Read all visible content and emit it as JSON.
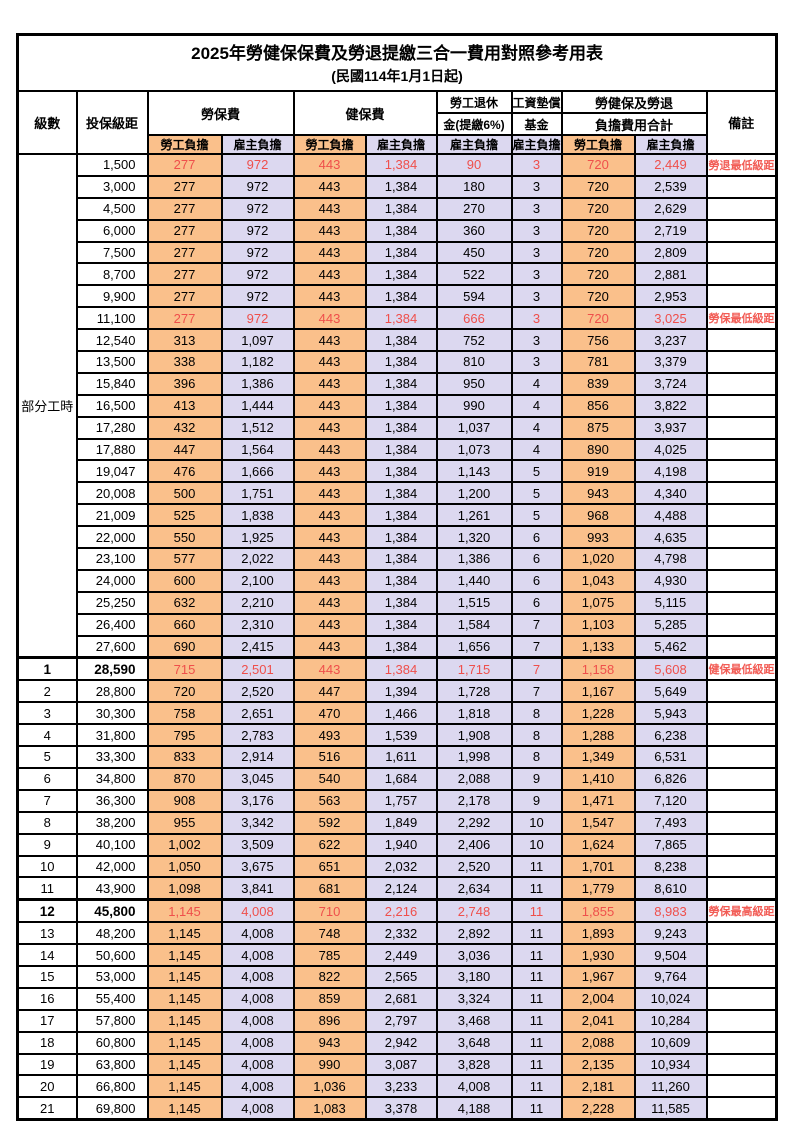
{
  "title": "2025年勞健保保費及勞退提繳三合一費用對照參考用表",
  "subtitle": "(民國114年1月1日起)",
  "colors": {
    "employee_bg": "#FAC08B",
    "employer_bg": "#DCD8F0",
    "highlight_text": "#EF4F4B",
    "remark_text": "#F25C55",
    "border": "#000000"
  },
  "header": {
    "level": "級數",
    "bracket": "投保級距",
    "labor_insurance": "勞保費",
    "health_insurance": "健保費",
    "pension_line1": "勞工退休",
    "pension_line2": "金(提繳6%)",
    "wage_fund_line1": "工資墊償",
    "wage_fund_line2": "基金",
    "total_line1": "勞健保及勞退",
    "total_line2": "負擔費用合計",
    "remark": "備註",
    "employee_share": "勞工負擔",
    "employer_share": "雇主負擔"
  },
  "table": {
    "part_time_label": "部分工時",
    "part_time_span": 23,
    "column_keys": [
      "level",
      "bracket",
      "labor_employee",
      "labor_employer",
      "health_employee",
      "health_employer",
      "pension_employer",
      "wage_fund_employer",
      "total_employee",
      "total_employer",
      "remark"
    ],
    "highlight_rows": [
      0,
      7,
      23,
      34
    ],
    "bold_head_rows": [
      23,
      34
    ],
    "thick_top_rows": [
      23,
      34
    ],
    "rows": [
      [
        "",
        "1,500",
        "277",
        "972",
        "443",
        "1,384",
        "90",
        "3",
        "720",
        "2,449",
        "勞退最低級距"
      ],
      [
        "",
        "3,000",
        "277",
        "972",
        "443",
        "1,384",
        "180",
        "3",
        "720",
        "2,539",
        ""
      ],
      [
        "",
        "4,500",
        "277",
        "972",
        "443",
        "1,384",
        "270",
        "3",
        "720",
        "2,629",
        ""
      ],
      [
        "",
        "6,000",
        "277",
        "972",
        "443",
        "1,384",
        "360",
        "3",
        "720",
        "2,719",
        ""
      ],
      [
        "",
        "7,500",
        "277",
        "972",
        "443",
        "1,384",
        "450",
        "3",
        "720",
        "2,809",
        ""
      ],
      [
        "",
        "8,700",
        "277",
        "972",
        "443",
        "1,384",
        "522",
        "3",
        "720",
        "2,881",
        ""
      ],
      [
        "",
        "9,900",
        "277",
        "972",
        "443",
        "1,384",
        "594",
        "3",
        "720",
        "2,953",
        ""
      ],
      [
        "",
        "11,100",
        "277",
        "972",
        "443",
        "1,384",
        "666",
        "3",
        "720",
        "3,025",
        "勞保最低級距"
      ],
      [
        "",
        "12,540",
        "313",
        "1,097",
        "443",
        "1,384",
        "752",
        "3",
        "756",
        "3,237",
        ""
      ],
      [
        "",
        "13,500",
        "338",
        "1,182",
        "443",
        "1,384",
        "810",
        "3",
        "781",
        "3,379",
        ""
      ],
      [
        "",
        "15,840",
        "396",
        "1,386",
        "443",
        "1,384",
        "950",
        "4",
        "839",
        "3,724",
        ""
      ],
      [
        "",
        "16,500",
        "413",
        "1,444",
        "443",
        "1,384",
        "990",
        "4",
        "856",
        "3,822",
        ""
      ],
      [
        "",
        "17,280",
        "432",
        "1,512",
        "443",
        "1,384",
        "1,037",
        "4",
        "875",
        "3,937",
        ""
      ],
      [
        "",
        "17,880",
        "447",
        "1,564",
        "443",
        "1,384",
        "1,073",
        "4",
        "890",
        "4,025",
        ""
      ],
      [
        "",
        "19,047",
        "476",
        "1,666",
        "443",
        "1,384",
        "1,143",
        "5",
        "919",
        "4,198",
        ""
      ],
      [
        "",
        "20,008",
        "500",
        "1,751",
        "443",
        "1,384",
        "1,200",
        "5",
        "943",
        "4,340",
        ""
      ],
      [
        "",
        "21,009",
        "525",
        "1,838",
        "443",
        "1,384",
        "1,261",
        "5",
        "968",
        "4,488",
        ""
      ],
      [
        "",
        "22,000",
        "550",
        "1,925",
        "443",
        "1,384",
        "1,320",
        "6",
        "993",
        "4,635",
        ""
      ],
      [
        "",
        "23,100",
        "577",
        "2,022",
        "443",
        "1,384",
        "1,386",
        "6",
        "1,020",
        "4,798",
        ""
      ],
      [
        "",
        "24,000",
        "600",
        "2,100",
        "443",
        "1,384",
        "1,440",
        "6",
        "1,043",
        "4,930",
        ""
      ],
      [
        "",
        "25,250",
        "632",
        "2,210",
        "443",
        "1,384",
        "1,515",
        "6",
        "1,075",
        "5,115",
        ""
      ],
      [
        "",
        "26,400",
        "660",
        "2,310",
        "443",
        "1,384",
        "1,584",
        "7",
        "1,103",
        "5,285",
        ""
      ],
      [
        "",
        "27,600",
        "690",
        "2,415",
        "443",
        "1,384",
        "1,656",
        "7",
        "1,133",
        "5,462",
        ""
      ],
      [
        "1",
        "28,590",
        "715",
        "2,501",
        "443",
        "1,384",
        "1,715",
        "7",
        "1,158",
        "5,608",
        "健保最低級距"
      ],
      [
        "2",
        "28,800",
        "720",
        "2,520",
        "447",
        "1,394",
        "1,728",
        "7",
        "1,167",
        "5,649",
        ""
      ],
      [
        "3",
        "30,300",
        "758",
        "2,651",
        "470",
        "1,466",
        "1,818",
        "8",
        "1,228",
        "5,943",
        ""
      ],
      [
        "4",
        "31,800",
        "795",
        "2,783",
        "493",
        "1,539",
        "1,908",
        "8",
        "1,288",
        "6,238",
        ""
      ],
      [
        "5",
        "33,300",
        "833",
        "2,914",
        "516",
        "1,611",
        "1,998",
        "8",
        "1,349",
        "6,531",
        ""
      ],
      [
        "6",
        "34,800",
        "870",
        "3,045",
        "540",
        "1,684",
        "2,088",
        "9",
        "1,410",
        "6,826",
        ""
      ],
      [
        "7",
        "36,300",
        "908",
        "3,176",
        "563",
        "1,757",
        "2,178",
        "9",
        "1,471",
        "7,120",
        ""
      ],
      [
        "8",
        "38,200",
        "955",
        "3,342",
        "592",
        "1,849",
        "2,292",
        "10",
        "1,547",
        "7,493",
        ""
      ],
      [
        "9",
        "40,100",
        "1,002",
        "3,509",
        "622",
        "1,940",
        "2,406",
        "10",
        "1,624",
        "7,865",
        ""
      ],
      [
        "10",
        "42,000",
        "1,050",
        "3,675",
        "651",
        "2,032",
        "2,520",
        "11",
        "1,701",
        "8,238",
        ""
      ],
      [
        "11",
        "43,900",
        "1,098",
        "3,841",
        "681",
        "2,124",
        "2,634",
        "11",
        "1,779",
        "8,610",
        ""
      ],
      [
        "12",
        "45,800",
        "1,145",
        "4,008",
        "710",
        "2,216",
        "2,748",
        "11",
        "1,855",
        "8,983",
        "勞保最高級距"
      ],
      [
        "13",
        "48,200",
        "1,145",
        "4,008",
        "748",
        "2,332",
        "2,892",
        "11",
        "1,893",
        "9,243",
        ""
      ],
      [
        "14",
        "50,600",
        "1,145",
        "4,008",
        "785",
        "2,449",
        "3,036",
        "11",
        "1,930",
        "9,504",
        ""
      ],
      [
        "15",
        "53,000",
        "1,145",
        "4,008",
        "822",
        "2,565",
        "3,180",
        "11",
        "1,967",
        "9,764",
        ""
      ],
      [
        "16",
        "55,400",
        "1,145",
        "4,008",
        "859",
        "2,681",
        "3,324",
        "11",
        "2,004",
        "10,024",
        ""
      ],
      [
        "17",
        "57,800",
        "1,145",
        "4,008",
        "896",
        "2,797",
        "3,468",
        "11",
        "2,041",
        "10,284",
        ""
      ],
      [
        "18",
        "60,800",
        "1,145",
        "4,008",
        "943",
        "2,942",
        "3,648",
        "11",
        "2,088",
        "10,609",
        ""
      ],
      [
        "19",
        "63,800",
        "1,145",
        "4,008",
        "990",
        "3,087",
        "3,828",
        "11",
        "2,135",
        "10,934",
        ""
      ],
      [
        "20",
        "66,800",
        "1,145",
        "4,008",
        "1,036",
        "3,233",
        "4,008",
        "11",
        "2,181",
        "11,260",
        ""
      ],
      [
        "21",
        "69,800",
        "1,145",
        "4,008",
        "1,083",
        "3,378",
        "4,188",
        "11",
        "2,228",
        "11,585",
        ""
      ]
    ]
  }
}
